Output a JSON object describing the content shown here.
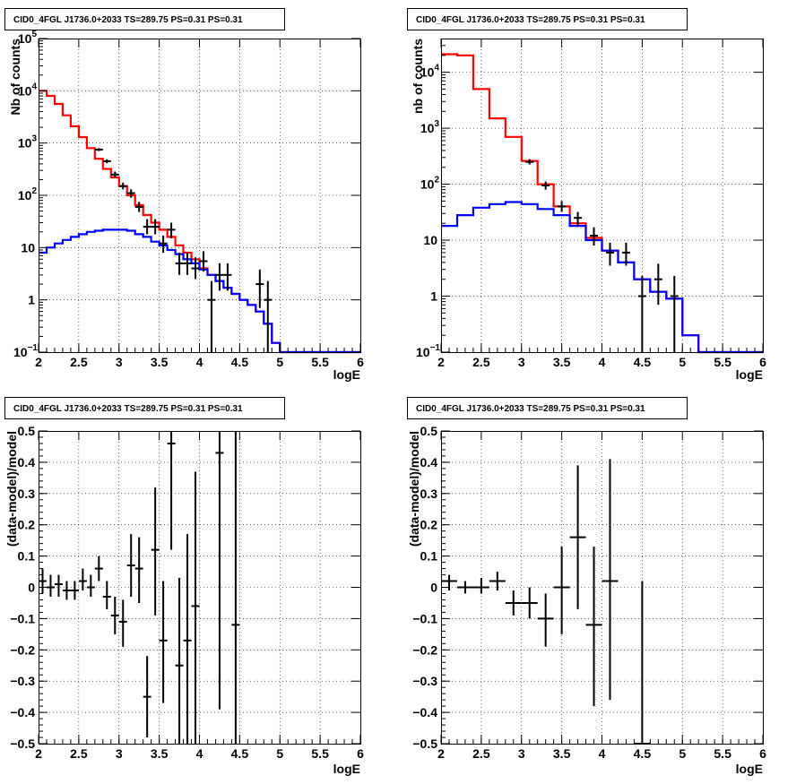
{
  "chart_data": [
    {
      "id": "top-left",
      "type": "line",
      "title": "CID0_4FGL J1736.0+2033 TS=289.75 PS=0.31 PS=0.31",
      "xlabel": "logE",
      "ylabel": "Nb of counts",
      "yscale": "log",
      "xlim": [
        2,
        6
      ],
      "ylim": [
        0.1,
        100000
      ],
      "xticks": [
        2,
        2.5,
        3,
        3.5,
        4,
        4.5,
        5,
        5.5,
        6
      ],
      "yticks": [
        {
          "v": 0.1,
          "base": "10",
          "exp": "−1"
        },
        {
          "v": 1,
          "base": "1",
          "exp": ""
        },
        {
          "v": 10,
          "base": "10",
          "exp": ""
        },
        {
          "v": 100,
          "base": "10",
          "exp": "2"
        },
        {
          "v": 1000,
          "base": "10",
          "exp": "3"
        },
        {
          "v": 10000,
          "base": "10",
          "exp": "4"
        },
        {
          "v": 100000,
          "base": "10",
          "exp": "5"
        }
      ],
      "grid": true,
      "bin_edges": [
        2.0,
        2.1,
        2.2,
        2.3,
        2.4,
        2.5,
        2.6,
        2.7,
        2.8,
        2.9,
        3.0,
        3.1,
        3.2,
        3.3,
        3.4,
        3.5,
        3.6,
        3.7,
        3.8,
        3.9,
        4.0,
        4.1,
        4.2,
        4.3,
        4.4,
        4.5,
        4.6,
        4.7,
        4.8,
        4.9,
        5.0,
        5.1,
        5.2,
        5.3,
        5.4,
        5.5,
        5.6,
        5.7,
        5.8,
        5.9,
        6.0
      ],
      "series": [
        {
          "color": "#ff0000",
          "values": [
            10000,
            8000,
            5600,
            3400,
            2100,
            1300,
            800,
            500,
            320,
            220,
            150,
            100,
            65,
            42,
            30,
            22,
            16,
            11,
            8,
            6,
            4,
            3,
            2.3,
            1.7,
            1.3,
            1.0,
            0.8,
            0.6,
            0.35,
            0.15,
            0.1,
            0.1,
            0.1,
            0.1,
            0.1,
            0.1,
            0.1,
            0.1,
            0.1,
            0.1
          ]
        },
        {
          "color": "#0000ff",
          "values": [
            8,
            10,
            12,
            14,
            16,
            18,
            20,
            21,
            22,
            22,
            22,
            21,
            18,
            16,
            13,
            11,
            9,
            7.5,
            6,
            5,
            3.8,
            3,
            2.3,
            1.7,
            1.3,
            1.0,
            0.8,
            0.6,
            0.35,
            0.15,
            0.1,
            0.1,
            0.1,
            0.1,
            0.1,
            0.1,
            0.1,
            0.1,
            0.1,
            0.1
          ]
        }
      ],
      "points": [
        {
          "x": 2.75,
          "y": 750,
          "ylo": 700,
          "yhi": 800
        },
        {
          "x": 2.85,
          "y": 450,
          "ylo": 410,
          "yhi": 490
        },
        {
          "x": 2.95,
          "y": 250,
          "ylo": 220,
          "yhi": 285
        },
        {
          "x": 3.05,
          "y": 150,
          "ylo": 130,
          "yhi": 175
        },
        {
          "x": 3.15,
          "y": 110,
          "ylo": 90,
          "yhi": 130
        },
        {
          "x": 3.25,
          "y": 60,
          "ylo": 48,
          "yhi": 75
        },
        {
          "x": 3.35,
          "y": 25,
          "ylo": 18,
          "yhi": 35
        },
        {
          "x": 3.45,
          "y": 25,
          "ylo": 18,
          "yhi": 35
        },
        {
          "x": 3.55,
          "y": 12,
          "ylo": 8,
          "yhi": 17
        },
        {
          "x": 3.65,
          "y": 22,
          "ylo": 15,
          "yhi": 30
        },
        {
          "x": 3.75,
          "y": 5,
          "ylo": 3,
          "yhi": 8
        },
        {
          "x": 3.85,
          "y": 5,
          "ylo": 3,
          "yhi": 8
        },
        {
          "x": 3.95,
          "y": 4,
          "ylo": 2.5,
          "yhi": 6.5
        },
        {
          "x": 4.05,
          "y": 5.5,
          "ylo": 3.5,
          "yhi": 8.5
        },
        {
          "x": 4.15,
          "y": 1,
          "ylo": 0.1,
          "yhi": 2.3
        },
        {
          "x": 4.25,
          "y": 3,
          "ylo": 1.5,
          "yhi": 5
        },
        {
          "x": 4.35,
          "y": 3,
          "ylo": 1.5,
          "yhi": 5
        },
        {
          "x": 4.75,
          "y": 2,
          "ylo": 0.7,
          "yhi": 3.8
        },
        {
          "x": 4.85,
          "y": 1,
          "ylo": 0.1,
          "yhi": 2.3
        }
      ]
    },
    {
      "id": "top-right",
      "type": "line",
      "title": "CID0_4FGL J1736.0+2033 TS=289.75 PS=0.31 PS=0.31",
      "xlabel": "logE",
      "ylabel": "nb of counts",
      "yscale": "log",
      "xlim": [
        2,
        6
      ],
      "ylim": [
        0.1,
        40000
      ],
      "xticks": [
        2,
        2.5,
        3,
        3.5,
        4,
        4.5,
        5,
        5.5,
        6
      ],
      "yticks": [
        {
          "v": 0.1,
          "base": "10",
          "exp": "−1"
        },
        {
          "v": 1,
          "base": "1",
          "exp": ""
        },
        {
          "v": 10,
          "base": "10",
          "exp": ""
        },
        {
          "v": 100,
          "base": "10",
          "exp": "2"
        },
        {
          "v": 1000,
          "base": "10",
          "exp": "3"
        },
        {
          "v": 10000,
          "base": "10",
          "exp": "4"
        }
      ],
      "grid": true,
      "bin_edges": [
        2.0,
        2.2,
        2.4,
        2.6,
        2.8,
        3.0,
        3.2,
        3.4,
        3.6,
        3.8,
        4.0,
        4.2,
        4.4,
        4.6,
        4.8,
        5.0,
        5.2,
        5.4,
        5.6,
        5.8,
        6.0
      ],
      "series": [
        {
          "color": "#ff0000",
          "values": [
            21000,
            20000,
            5000,
            1500,
            700,
            260,
            100,
            40,
            20,
            11,
            6.5,
            4,
            2,
            1.2,
            0.9,
            0.2,
            0.1,
            0.1,
            0.1,
            0.1
          ]
        },
        {
          "color": "#0000ff",
          "values": [
            18,
            28,
            38,
            44,
            48,
            44,
            36,
            28,
            18,
            10,
            6.5,
            4,
            2,
            1.2,
            0.9,
            0.2,
            0.1,
            0.1,
            0.1,
            0.1
          ]
        }
      ],
      "points": [
        {
          "x": 3.1,
          "y": 250,
          "ylo": 225,
          "yhi": 280
        },
        {
          "x": 3.3,
          "y": 95,
          "ylo": 80,
          "yhi": 112
        },
        {
          "x": 3.5,
          "y": 40,
          "ylo": 32,
          "yhi": 50
        },
        {
          "x": 3.7,
          "y": 25,
          "ylo": 18,
          "yhi": 32
        },
        {
          "x": 3.9,
          "y": 12,
          "ylo": 8,
          "yhi": 17
        },
        {
          "x": 4.1,
          "y": 6,
          "ylo": 3.5,
          "yhi": 9
        },
        {
          "x": 4.3,
          "y": 6,
          "ylo": 3.5,
          "yhi": 9
        },
        {
          "x": 4.5,
          "y": 1,
          "ylo": 0.1,
          "yhi": 2.3
        },
        {
          "x": 4.7,
          "y": 2,
          "ylo": 0.7,
          "yhi": 3.8
        },
        {
          "x": 4.9,
          "y": 1,
          "ylo": 0.1,
          "yhi": 2.3
        }
      ]
    },
    {
      "id": "bottom-left",
      "type": "scatter",
      "title": "CID0_4FGL J1736.0+2033 TS=289.75 PS=0.31 PS=0.31",
      "xlabel": "logE",
      "ylabel": "(data-model)/model",
      "yscale": "linear",
      "xlim": [
        2,
        6
      ],
      "ylim": [
        -0.5,
        0.5
      ],
      "xticks": [
        2,
        2.5,
        3,
        3.5,
        4,
        4.5,
        5,
        5.5,
        6
      ],
      "yticks": [
        {
          "v": -0.5,
          "label": "−0.5"
        },
        {
          "v": -0.4,
          "label": "−0.4"
        },
        {
          "v": -0.3,
          "label": "−0.3"
        },
        {
          "v": -0.2,
          "label": "−0.2"
        },
        {
          "v": -0.1,
          "label": "−0.1"
        },
        {
          "v": 0,
          "label": "0"
        },
        {
          "v": 0.1,
          "label": "0.1"
        },
        {
          "v": 0.2,
          "label": "0.2"
        },
        {
          "v": 0.3,
          "label": "0.3"
        },
        {
          "v": 0.4,
          "label": "0.4"
        },
        {
          "v": 0.5,
          "label": "0.5"
        }
      ],
      "grid": true,
      "xerr": 0.05,
      "points": [
        {
          "x": 2.05,
          "y": 0.02,
          "ylo": -0.02,
          "yhi": 0.06
        },
        {
          "x": 2.15,
          "y": 0.0,
          "ylo": -0.03,
          "yhi": 0.04
        },
        {
          "x": 2.25,
          "y": 0.01,
          "ylo": -0.03,
          "yhi": 0.04
        },
        {
          "x": 2.35,
          "y": -0.01,
          "ylo": -0.04,
          "yhi": 0.02
        },
        {
          "x": 2.45,
          "y": -0.01,
          "ylo": -0.04,
          "yhi": 0.02
        },
        {
          "x": 2.55,
          "y": 0.02,
          "ylo": -0.01,
          "yhi": 0.06
        },
        {
          "x": 2.65,
          "y": 0.0,
          "ylo": -0.03,
          "yhi": 0.04
        },
        {
          "x": 2.75,
          "y": 0.06,
          "ylo": 0.02,
          "yhi": 0.1
        },
        {
          "x": 2.85,
          "y": -0.03,
          "ylo": -0.07,
          "yhi": 0.02
        },
        {
          "x": 2.95,
          "y": -0.09,
          "ylo": -0.15,
          "yhi": -0.03
        },
        {
          "x": 3.05,
          "y": -0.11,
          "ylo": -0.19,
          "yhi": -0.04
        },
        {
          "x": 3.15,
          "y": 0.07,
          "ylo": -0.03,
          "yhi": 0.17
        },
        {
          "x": 3.25,
          "y": 0.06,
          "ylo": -0.05,
          "yhi": 0.16
        },
        {
          "x": 3.35,
          "y": -0.35,
          "ylo": -0.48,
          "yhi": -0.22
        },
        {
          "x": 3.45,
          "y": 0.12,
          "ylo": -0.09,
          "yhi": 0.32
        },
        {
          "x": 3.55,
          "y": -0.17,
          "ylo": -0.37,
          "yhi": 0.02
        },
        {
          "x": 3.65,
          "y": 0.46,
          "ylo": 0.12,
          "yhi": 0.5
        },
        {
          "x": 3.75,
          "y": -0.25,
          "ylo": -0.5,
          "yhi": 0.03
        },
        {
          "x": 3.85,
          "y": -0.17,
          "ylo": -0.5,
          "yhi": 0.17
        },
        {
          "x": 3.95,
          "y": -0.06,
          "ylo": -0.5,
          "yhi": 0.37
        },
        {
          "x": 4.25,
          "y": 0.43,
          "ylo": -0.39,
          "yhi": 0.5
        },
        {
          "x": 4.45,
          "y": -0.12,
          "ylo": -0.5,
          "yhi": 0.5
        }
      ]
    },
    {
      "id": "bottom-right",
      "type": "scatter",
      "title": "CID0_4FGL J1736.0+2033 TS=289.75 PS=0.31 PS=0.31",
      "xlabel": "logE",
      "ylabel": "(data-model)/model",
      "yscale": "linear",
      "xlim": [
        2,
        6
      ],
      "ylim": [
        -0.5,
        0.5
      ],
      "xticks": [
        2,
        2.5,
        3,
        3.5,
        4,
        4.5,
        5,
        5.5,
        6
      ],
      "yticks": [
        {
          "v": -0.5,
          "label": "−0.5"
        },
        {
          "v": -0.4,
          "label": "−0.4"
        },
        {
          "v": -0.3,
          "label": "−0.3"
        },
        {
          "v": -0.2,
          "label": "−0.2"
        },
        {
          "v": -0.1,
          "label": "−0.1"
        },
        {
          "v": 0,
          "label": "0"
        },
        {
          "v": 0.1,
          "label": "0.1"
        },
        {
          "v": 0.2,
          "label": "0.2"
        },
        {
          "v": 0.3,
          "label": "0.3"
        },
        {
          "v": 0.4,
          "label": "0.4"
        },
        {
          "v": 0.5,
          "label": "0.5"
        }
      ],
      "grid": true,
      "xerr": 0.1,
      "points": [
        {
          "x": 2.1,
          "y": 0.02,
          "ylo": -0.01,
          "yhi": 0.04
        },
        {
          "x": 2.3,
          "y": 0.0,
          "ylo": -0.02,
          "yhi": 0.02
        },
        {
          "x": 2.5,
          "y": 0.0,
          "ylo": -0.02,
          "yhi": 0.03
        },
        {
          "x": 2.7,
          "y": 0.02,
          "ylo": -0.01,
          "yhi": 0.05
        },
        {
          "x": 2.9,
          "y": -0.05,
          "ylo": -0.09,
          "yhi": -0.01
        },
        {
          "x": 3.1,
          "y": -0.05,
          "ylo": -0.1,
          "yhi": 0.0
        },
        {
          "x": 3.3,
          "y": -0.1,
          "ylo": -0.19,
          "yhi": -0.02
        },
        {
          "x": 3.5,
          "y": 0.0,
          "ylo": -0.15,
          "yhi": 0.13
        },
        {
          "x": 3.7,
          "y": 0.16,
          "ylo": -0.07,
          "yhi": 0.39
        },
        {
          "x": 3.9,
          "y": -0.12,
          "ylo": -0.38,
          "yhi": 0.13
        },
        {
          "x": 4.1,
          "y": 0.02,
          "ylo": -0.36,
          "yhi": 0.41
        },
        {
          "x": 4.5,
          "y": -0.5,
          "ylo": -0.5,
          "yhi": 0.02
        }
      ]
    }
  ]
}
